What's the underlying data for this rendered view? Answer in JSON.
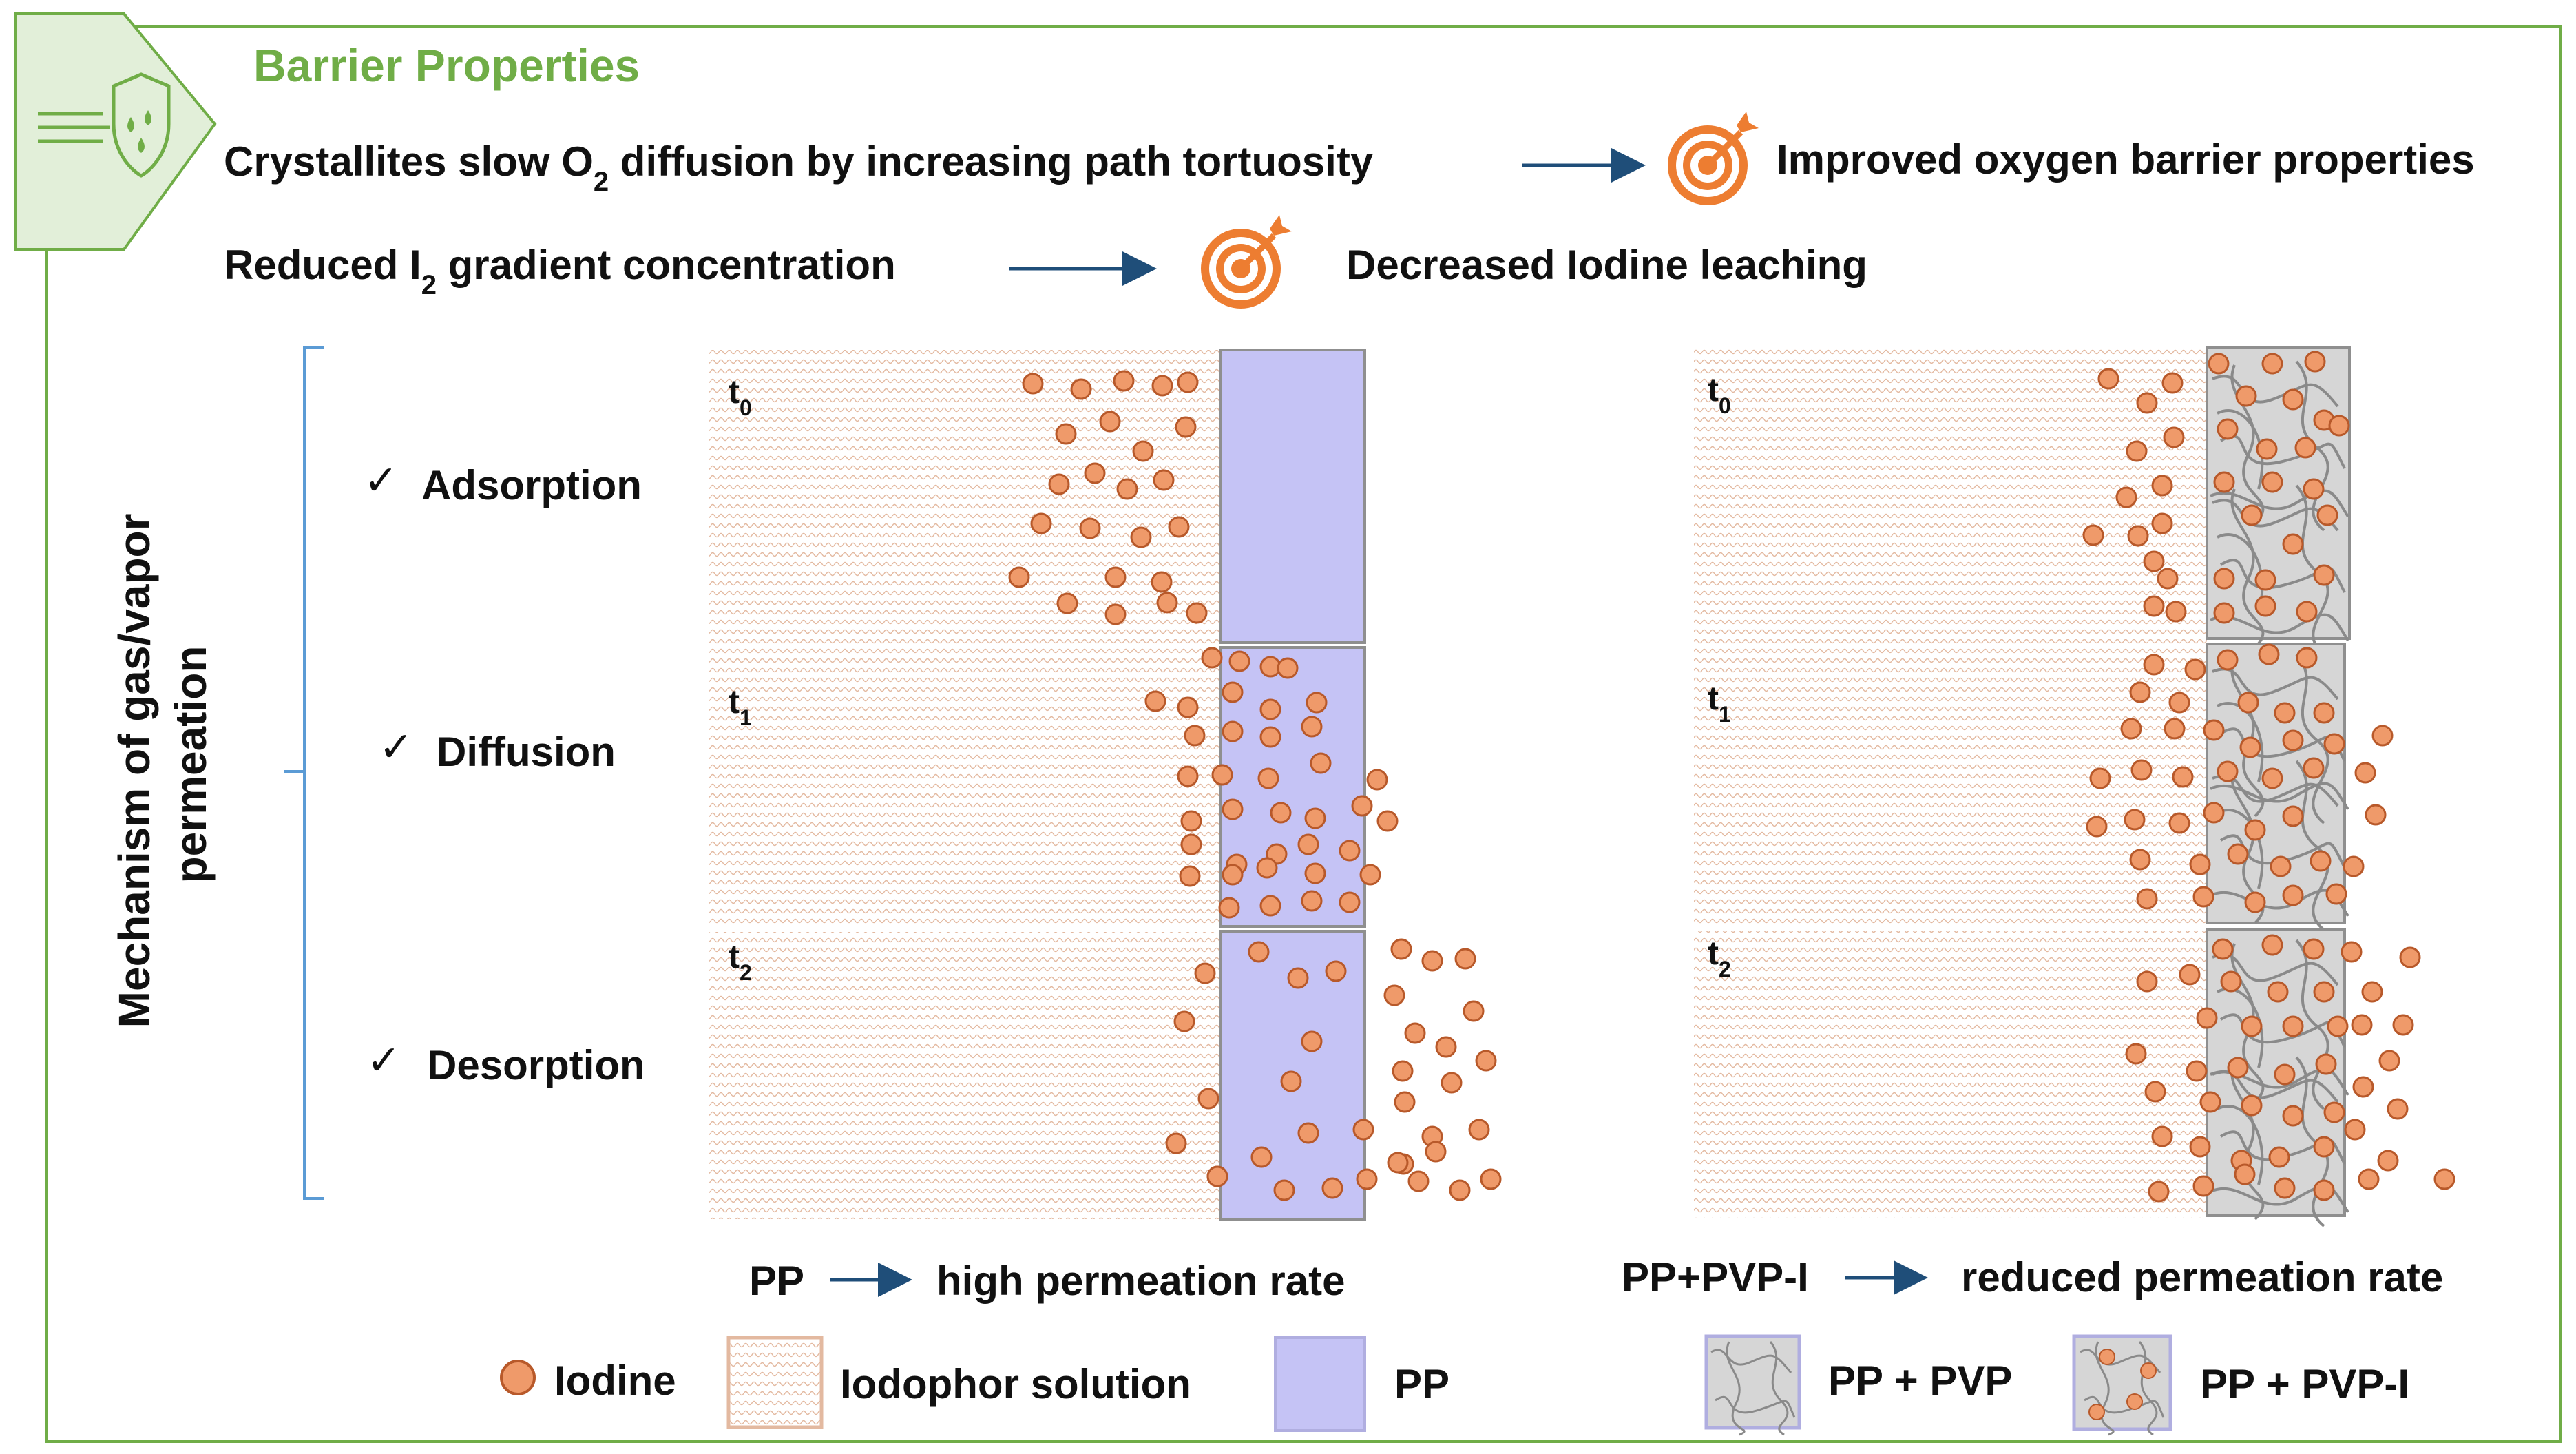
{
  "header": {
    "title": "Barrier Properties",
    "line1_pre": "Crystallites slow O",
    "line1_sub": "2",
    "line1_post": " diffusion by increasing path tortuosity",
    "line1_result": "Improved oxygen barrier properties",
    "line2_pre": "Reduced I",
    "line2_sub": "2",
    "line2_post": " gradient concentration",
    "line2_result": "Decreased Iodine leaching"
  },
  "mechanism": {
    "axis_label_line1": "Mechanism of gas/vapor",
    "axis_label_line2": "permeation",
    "check": "✓",
    "steps": [
      "Adsorption",
      "Diffusion",
      "Desorption"
    ]
  },
  "panels": {
    "time_labels": [
      {
        "t": "t",
        "sub": "0"
      },
      {
        "t": "t",
        "sub": "1"
      },
      {
        "t": "t",
        "sub": "2"
      }
    ],
    "left_caption_material": "PP",
    "left_caption_result": "high permeation rate",
    "right_caption_material": "PP+PVP-I",
    "right_caption_result": "reduced permeation rate"
  },
  "legend": {
    "iodine": "Iodine",
    "iodophor": "Iodophor solution",
    "pp": "PP",
    "pp_pvp": "PP + PVP",
    "pp_pvp_i": "PP + PVP-I"
  },
  "colors": {
    "accent_green": "#70ad47",
    "iodine_fill": "#ef9a6a",
    "iodine_stroke": "#b8592a",
    "pp_fill": "#c5c3f5",
    "pvp_fill": "#d6d6d6",
    "arrow": "#1f4e79",
    "target": "#ed7d31"
  }
}
